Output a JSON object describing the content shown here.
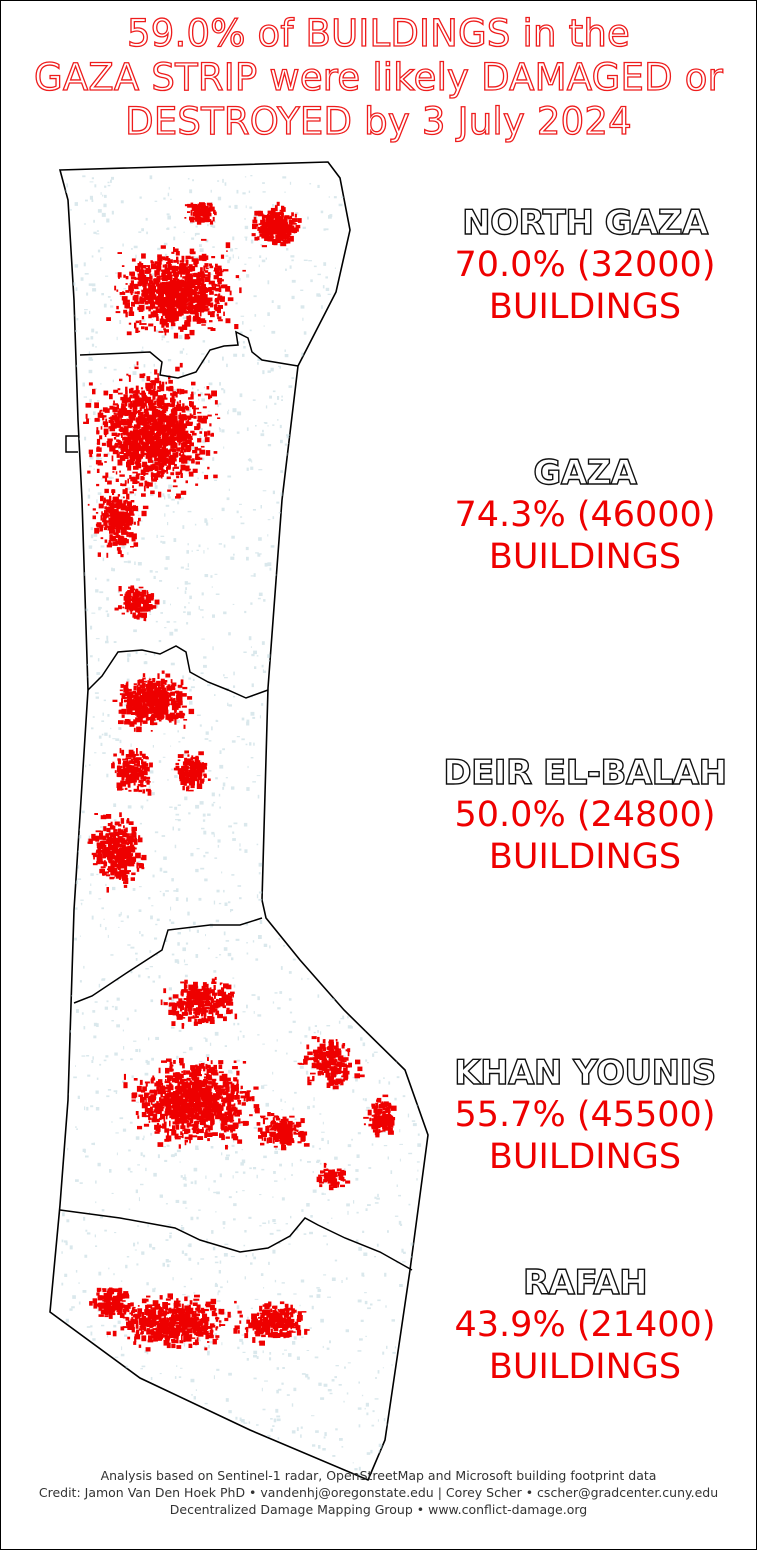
{
  "title": {
    "line1": "59.0% of BUILDINGS in the",
    "line2": "GAZA STRIP were likely DAMAGED or",
    "line3": "DESTROYED by 3 July 2024"
  },
  "colors": {
    "damage": "#ee0000",
    "buildings": "#bcd6dd",
    "border": "#000000",
    "title_outline": "#ee1c1c"
  },
  "regions": [
    {
      "name": "NORTH GAZA",
      "stat": "70.0% (32000)",
      "unit": "BUILDINGS",
      "percent": 70.0,
      "count": 32000
    },
    {
      "name": "GAZA",
      "stat": "74.3% (46000)",
      "unit": "BUILDINGS",
      "percent": 74.3,
      "count": 46000
    },
    {
      "name": "DEIR EL-BALAH",
      "stat": "50.0% (24800)",
      "unit": "BUILDINGS",
      "percent": 50.0,
      "count": 24800
    },
    {
      "name": "KHAN YOUNIS",
      "stat": "55.7% (45500)",
      "unit": "BUILDINGS",
      "percent": 55.7,
      "count": 45500
    },
    {
      "name": "RAFAH",
      "stat": "43.9% (21400)",
      "unit": "BUILDINGS",
      "percent": 43.9,
      "count": 21400
    }
  ],
  "footer": {
    "line1": "Analysis based on Sentinel-1 radar, OpenStreetMap and Microsoft building footprint data",
    "line2": "Credit: Jamon Van Den Hoek PhD • vandenhj@oregonstate.edu | Corey Scher • cscher@gradcenter.cuny.edu",
    "line3": "Decentralized Damage Mapping Group • www.conflict-damage.org"
  }
}
